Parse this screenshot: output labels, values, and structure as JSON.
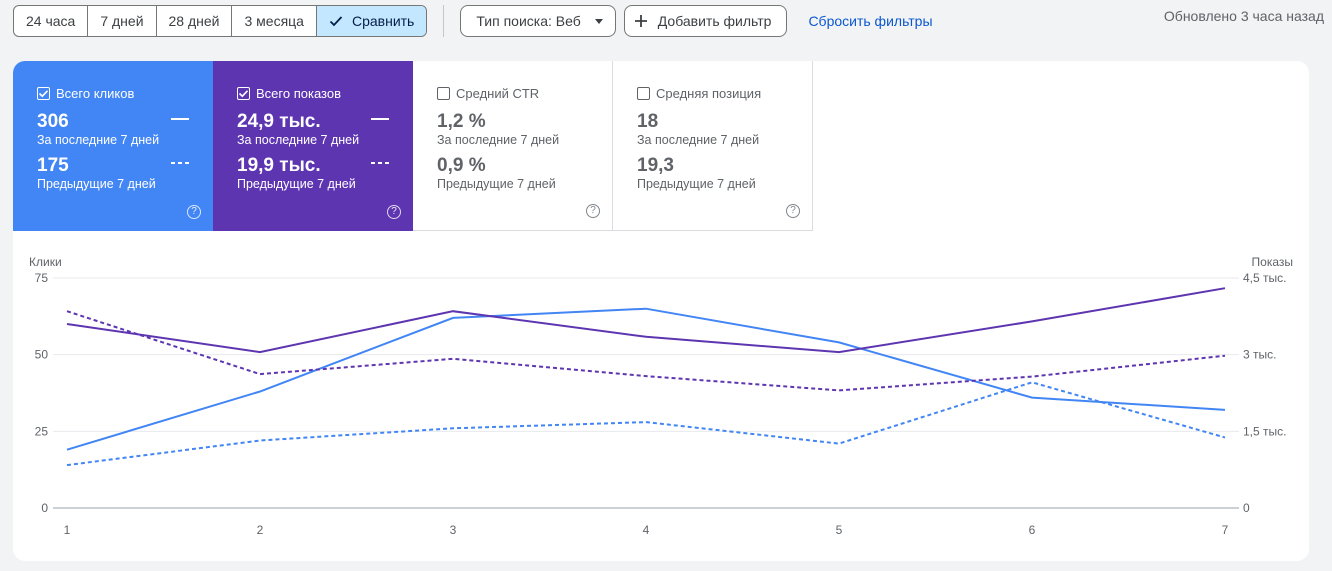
{
  "toolbar": {
    "periods": [
      "24 часа",
      "7 дней",
      "28 дней",
      "3 месяца"
    ],
    "compare_label": "Сравнить",
    "search_type_label": "Тип поиска: Веб",
    "add_filter_label": "Добавить фильтр",
    "reset_filters_label": "Сбросить фильтры",
    "updated_label": "Обновлено 3 часа назад"
  },
  "metrics": [
    {
      "title": "Всего кликов",
      "checked": true,
      "current": "306",
      "current_label": "За последние 7 дней",
      "previous": "175",
      "previous_label": "Предыдущие 7 дней"
    },
    {
      "title": "Всего показов",
      "checked": true,
      "current": "24,9 тыс.",
      "current_label": "За последние 7 дней",
      "previous": "19,9 тыс.",
      "previous_label": "Предыдущие 7 дней"
    },
    {
      "title": "Средний CTR",
      "checked": false,
      "current": "1,2 %",
      "current_label": "За последние 7 дней",
      "previous": "0,9 %",
      "previous_label": "Предыдущие 7 дней"
    },
    {
      "title": "Средняя позиция",
      "checked": false,
      "current": "18",
      "current_label": "За последние 7 дней",
      "previous": "19,3",
      "previous_label": "Предыдущие 7 дней"
    }
  ],
  "colors": {
    "clicks": "#4285f4",
    "impressions": "#5e35b1",
    "active_chip": "#c2e7ff",
    "link": "#0b57d0"
  },
  "chart_data": {
    "type": "line",
    "x": [
      1,
      2,
      3,
      4,
      5,
      6,
      7
    ],
    "ylabel_left": "Клики",
    "ylabel_right": "Показы",
    "ylim_left": [
      0,
      75
    ],
    "yticks_left": [
      "0",
      "25",
      "50",
      "75"
    ],
    "ylim_right": [
      0,
      4500
    ],
    "yticks_right": [
      "0",
      "1,5 тыс.",
      "3 тыс.",
      "4,5 тыс."
    ],
    "series": [
      {
        "metric": "clicks",
        "period": "current",
        "axis": "left",
        "values": [
          19,
          38,
          62,
          65,
          54,
          36,
          32
        ]
      },
      {
        "metric": "clicks",
        "period": "previous",
        "axis": "left",
        "values": [
          14,
          22,
          26,
          28,
          21,
          41,
          23
        ]
      },
      {
        "metric": "impressions",
        "period": "current",
        "axis": "right",
        "values": [
          3600,
          3050,
          3850,
          3350,
          3050,
          3650,
          4300
        ]
      },
      {
        "metric": "impressions",
        "period": "previous",
        "axis": "right",
        "values": [
          3850,
          2620,
          2920,
          2580,
          2300,
          2570,
          2980
        ]
      }
    ]
  }
}
